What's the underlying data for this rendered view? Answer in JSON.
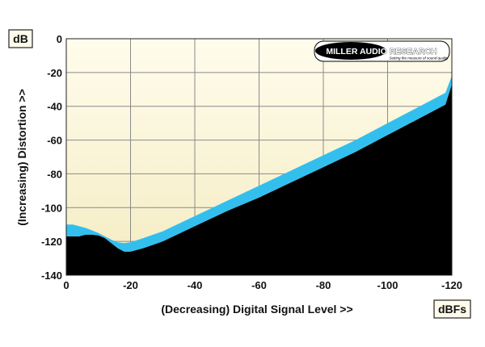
{
  "chart_data": {
    "type": "area",
    "xlabel": "(Decreasing) Digital Signal Level >>",
    "ylabel": "(Increasing) Distortion >>",
    "y_unit_box": "dB",
    "x_unit_box": "dBFs",
    "x_ticks": [
      0,
      -20,
      -40,
      -60,
      -80,
      -100,
      -120
    ],
    "y_ticks": [
      0,
      -20,
      -40,
      -60,
      -80,
      -100,
      -120,
      -140
    ],
    "xlim": [
      0,
      -120
    ],
    "ylim": [
      -140,
      0
    ],
    "grid": true,
    "colors": {
      "background_top": "#fffcec",
      "background_bottom": "#f4ecc2",
      "band": "#33bfee",
      "floor": "#000000",
      "grid": "#8a8a8a"
    },
    "series": [
      {
        "role": "band-upper",
        "x": [
          0,
          -2,
          -4,
          -6,
          -8,
          -10,
          -12,
          -14,
          -16,
          -18,
          -20,
          -24,
          -30,
          -40,
          -50,
          -60,
          -70,
          -80,
          -90,
          -100,
          -110,
          -118,
          -120
        ],
        "y": [
          -110,
          -110,
          -111,
          -112,
          -113.5,
          -115,
          -117,
          -119,
          -120.5,
          -121,
          -120.5,
          -118,
          -114,
          -105,
          -96,
          -87,
          -78,
          -69,
          -60,
          -50,
          -40,
          -32,
          -22
        ]
      },
      {
        "role": "band-lower",
        "x": [
          0,
          -2,
          -4,
          -6,
          -8,
          -10,
          -12,
          -14,
          -16,
          -18,
          -20,
          -24,
          -30,
          -40,
          -50,
          -60,
          -70,
          -80,
          -90,
          -100,
          -110,
          -118,
          -120
        ],
        "y": [
          -117,
          -117,
          -117,
          -116,
          -116,
          -116.5,
          -118,
          -121,
          -124,
          -126,
          -126,
          -124,
          -120,
          -111,
          -102,
          -94,
          -85,
          -76,
          -67,
          -57,
          -47,
          -39,
          -27
        ]
      }
    ],
    "logo": {
      "text_main": "MILLER AUDIO RESEARCH",
      "tagline": "Setting the measure of sound quality"
    }
  }
}
